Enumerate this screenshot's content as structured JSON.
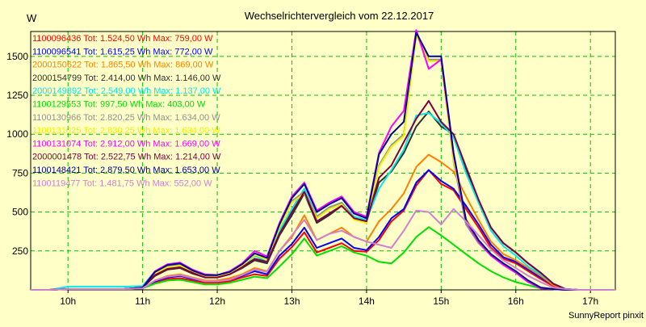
{
  "chart_data": {
    "type": "line",
    "title": "Wechselrichtervergleich vom 22.12.2017",
    "unit_label": "W",
    "footer": "SunnyReport pinxit",
    "ylim": [
      0,
      1660
    ],
    "y_ticks": [
      250,
      500,
      750,
      1000,
      1250,
      1500
    ],
    "x_range": [
      "09:30",
      "17:20"
    ],
    "x_ticks": [
      "10h",
      "11h",
      "12h",
      "13h",
      "14h",
      "15h",
      "16h",
      "17h"
    ],
    "grid": true,
    "legend_position": "top-left inside",
    "x": [
      "09:30",
      "09:45",
      "10:00",
      "10:15",
      "10:30",
      "10:45",
      "11:00",
      "11:10",
      "11:20",
      "11:30",
      "11:40",
      "11:50",
      "12:00",
      "12:10",
      "12:20",
      "12:30",
      "12:40",
      "12:50",
      "13:00",
      "13:10",
      "13:20",
      "13:30",
      "13:40",
      "13:50",
      "14:00",
      "14:10",
      "14:20",
      "14:30",
      "14:40",
      "14:50",
      "15:00",
      "15:10",
      "15:20",
      "15:30",
      "15:40",
      "15:50",
      "16:00",
      "16:10",
      "16:20",
      "16:30",
      "16:40",
      "16:50",
      "17:00",
      "17:10",
      "17:20"
    ],
    "series": [
      {
        "serial": "1100096436",
        "stats": "Tot: 1.524,50 Wh Max: 759,00 W",
        "color": "#ff0000",
        "values": [
          0,
          0,
          5,
          5,
          5,
          5,
          10,
          50,
          70,
          75,
          60,
          45,
          45,
          55,
          80,
          100,
          90,
          200,
          275,
          370,
          240,
          270,
          300,
          250,
          245,
          320,
          440,
          510,
          670,
          770,
          680,
          640,
          520,
          400,
          270,
          200,
          170,
          120,
          70,
          25,
          5,
          0,
          0,
          0,
          0
        ]
      },
      {
        "serial": "1100096541",
        "stats": "Tot: 1.615,25 Wh Max: 772,00 W",
        "color": "#0000ff",
        "values": [
          0,
          0,
          5,
          5,
          5,
          5,
          10,
          55,
          80,
          90,
          70,
          55,
          55,
          65,
          90,
          120,
          100,
          220,
          295,
          400,
          270,
          300,
          330,
          270,
          255,
          340,
          460,
          520,
          690,
          770,
          700,
          650,
          540,
          420,
          290,
          210,
          180,
          130,
          80,
          30,
          5,
          0,
          0,
          0,
          0
        ]
      },
      {
        "serial": "2000150622",
        "stats": "Tot: 1.865,50 Wh Max: 869,00 W",
        "color": "#ff8000",
        "values": [
          0,
          0,
          5,
          5,
          5,
          5,
          10,
          60,
          90,
          100,
          80,
          60,
          60,
          75,
          100,
          140,
          120,
          250,
          340,
          480,
          320,
          360,
          400,
          340,
          310,
          440,
          520,
          620,
          790,
          869,
          820,
          760,
          600,
          450,
          310,
          230,
          190,
          140,
          90,
          30,
          5,
          0,
          0,
          0,
          0
        ]
      },
      {
        "serial": "2000154799",
        "stats": "Tot: 2.414,00 Wh Max: 1.146,00 W",
        "color": "#303030",
        "values": [
          0,
          0,
          5,
          5,
          5,
          5,
          15,
          90,
          130,
          140,
          105,
          80,
          80,
          100,
          140,
          190,
          170,
          350,
          480,
          620,
          430,
          480,
          540,
          460,
          440,
          690,
          760,
          880,
          1050,
          1146,
          1050,
          1000,
          770,
          570,
          400,
          300,
          240,
          170,
          110,
          40,
          5,
          0,
          0,
          0,
          0
        ]
      },
      {
        "serial": "2000149892",
        "stats": "Tot: 2.549,00 Wh Max: 1.137,00 W",
        "color": "#00e8e8",
        "values": [
          0,
          0,
          20,
          20,
          20,
          20,
          25,
          120,
          150,
          160,
          120,
          90,
          85,
          110,
          150,
          220,
          180,
          380,
          520,
          650,
          470,
          530,
          560,
          470,
          450,
          650,
          770,
          900,
          1120,
          1137,
          1070,
          980,
          750,
          560,
          380,
          280,
          220,
          150,
          100,
          40,
          5,
          0,
          0,
          0,
          0
        ]
      },
      {
        "serial": "1100129553",
        "stats": "Tot: 997,50 Wh Max: 403,00 W",
        "color": "#00e000",
        "values": [
          0,
          0,
          5,
          5,
          5,
          5,
          10,
          40,
          60,
          65,
          50,
          35,
          35,
          45,
          65,
          85,
          75,
          150,
          230,
          330,
          220,
          250,
          280,
          240,
          220,
          180,
          170,
          240,
          340,
          403,
          350,
          290,
          230,
          170,
          120,
          80,
          50,
          30,
          10,
          5,
          0,
          0,
          0,
          0,
          0
        ]
      },
      {
        "serial": "1100130966",
        "stats": "Tot: 2.820,25 Wh Max: 1.634,00 W",
        "color": "#909090",
        "values": [
          0,
          0,
          5,
          5,
          5,
          5,
          15,
          110,
          150,
          160,
          120,
          90,
          90,
          110,
          160,
          230,
          200,
          410,
          570,
          630,
          470,
          530,
          560,
          460,
          440,
          800,
          930,
          1000,
          1634,
          1480,
          1480,
          820,
          420,
          300,
          220,
          160,
          110,
          50,
          10,
          5,
          0,
          0,
          0,
          0,
          0
        ]
      },
      {
        "serial": "1100131025",
        "stats": "Tot: 2.830,25 Wh Max: 1.634,00 W",
        "color": "#f0f000",
        "values": [
          0,
          0,
          5,
          5,
          5,
          5,
          15,
          105,
          145,
          155,
          115,
          85,
          85,
          105,
          155,
          225,
          195,
          400,
          560,
          620,
          460,
          520,
          550,
          450,
          430,
          790,
          920,
          990,
          1634,
          1470,
          1470,
          830,
          460,
          320,
          230,
          170,
          120,
          60,
          15,
          5,
          0,
          0,
          0,
          0,
          0
        ]
      },
      {
        "serial": "1100131074",
        "stats": "Tot: 2.912,00 Wh Max: 1.669,00 W",
        "color": "#ff00ff",
        "values": [
          0,
          0,
          5,
          5,
          5,
          5,
          15,
          120,
          165,
          175,
          130,
          100,
          95,
          120,
          170,
          250,
          215,
          430,
          600,
          690,
          510,
          560,
          600,
          500,
          470,
          880,
          1050,
          1150,
          1669,
          1420,
          1480,
          870,
          440,
          310,
          220,
          160,
          110,
          50,
          10,
          5,
          0,
          0,
          0,
          0,
          0
        ]
      },
      {
        "serial": "2000001478",
        "stats": "Tot: 2.522,75 Wh Max: 1.214,00 W",
        "color": "#800040",
        "values": [
          0,
          0,
          5,
          5,
          5,
          5,
          15,
          95,
          135,
          145,
          110,
          80,
          80,
          100,
          145,
          200,
          180,
          360,
          500,
          630,
          440,
          490,
          540,
          460,
          440,
          720,
          800,
          950,
          1100,
          1214,
          1080,
          1000,
          790,
          580,
          400,
          300,
          240,
          170,
          110,
          40,
          5,
          0,
          0,
          0,
          0
        ]
      },
      {
        "serial": "1100148421",
        "stats": "Tot: 2.879,50 Wh Max: 1.653,00 W",
        "color": "#000090",
        "values": [
          0,
          0,
          5,
          5,
          5,
          5,
          15,
          115,
          160,
          170,
          125,
          95,
          95,
          115,
          165,
          235,
          205,
          420,
          590,
          680,
          500,
          550,
          590,
          490,
          460,
          870,
          1000,
          1080,
          1653,
          1500,
          1500,
          880,
          450,
          320,
          230,
          170,
          120,
          60,
          15,
          5,
          0,
          0,
          0,
          0,
          0
        ]
      },
      {
        "serial": "1100119477",
        "stats": "Tot: 1.481,75 Wh Max: 552,00 W",
        "color": "#d080d0",
        "values": [
          0,
          0,
          5,
          5,
          5,
          5,
          10,
          60,
          85,
          95,
          75,
          55,
          55,
          65,
          95,
          130,
          115,
          250,
          350,
          450,
          320,
          360,
          380,
          340,
          310,
          290,
          270,
          380,
          510,
          500,
          420,
          520,
          440,
          350,
          260,
          190,
          140,
          90,
          50,
          15,
          5,
          0,
          0,
          0,
          0
        ]
      }
    ]
  }
}
